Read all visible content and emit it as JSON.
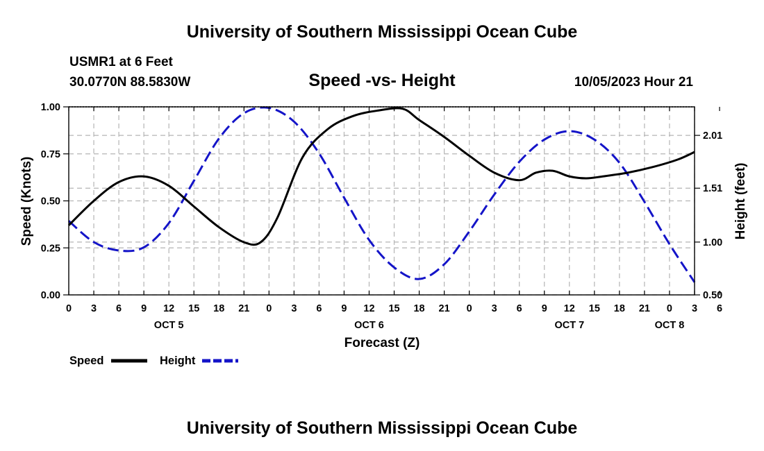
{
  "header": {
    "title": "University of Southern Mississippi Ocean Cube",
    "station": "USMR1 at 6 Feet",
    "location": "30.0770N  88.5830W",
    "timestamp": "10/05/2023 Hour 21",
    "footer_title": "University of Southern Mississippi Ocean Cube"
  },
  "chart_data": {
    "type": "line",
    "title": "Speed -vs- Height",
    "xlabel": "Forecast (Z)",
    "ylabel": "Speed (Knots)",
    "y2label": "Height (feet)",
    "ylim": [
      0,
      1
    ],
    "y2lim": [
      0.5,
      2.28
    ],
    "xlim": [
      0,
      75
    ],
    "x_unit": "hours from OCT 5 00Z",
    "x_tick_labels": [
      "0",
      "3",
      "6",
      "9",
      "12",
      "15",
      "18",
      "21",
      "0",
      "3",
      "6",
      "9",
      "12",
      "15",
      "18",
      "21",
      "0",
      "3",
      "6",
      "9",
      "12",
      "15",
      "18",
      "21",
      "0",
      "3",
      "6"
    ],
    "y_tick_labels": [
      "0.00",
      "0.25",
      "0.50",
      "0.75",
      "1.00"
    ],
    "y_ticks": [
      0,
      0.25,
      0.5,
      0.75,
      1.0
    ],
    "y2_tick_labels": [
      "0.50",
      "1.00",
      "1.51",
      "2.01"
    ],
    "y2_ticks": [
      0.5,
      1.0,
      1.51,
      2.01
    ],
    "date_labels": [
      {
        "label": "OCT 5",
        "x": 12
      },
      {
        "label": "OCT 6",
        "x": 36
      },
      {
        "label": "OCT 7",
        "x": 60
      },
      {
        "label": "OCT 8",
        "x": 72
      }
    ],
    "grid": true,
    "legend_position": "bottom-left",
    "series": [
      {
        "name": "Speed",
        "axis": "left",
        "color": "#000000",
        "style": "solid",
        "x": [
          0,
          3,
          6,
          9,
          12,
          15,
          18,
          21,
          23,
          25,
          28,
          31,
          34,
          37,
          40,
          42,
          45,
          48,
          51,
          54,
          56,
          58,
          60,
          62,
          64,
          67,
          70,
          73,
          75
        ],
        "y": [
          0.37,
          0.5,
          0.6,
          0.63,
          0.58,
          0.47,
          0.36,
          0.28,
          0.28,
          0.41,
          0.73,
          0.88,
          0.95,
          0.98,
          0.99,
          0.93,
          0.84,
          0.74,
          0.65,
          0.61,
          0.65,
          0.66,
          0.63,
          0.62,
          0.63,
          0.65,
          0.68,
          0.72,
          0.76
        ]
      },
      {
        "name": "Height",
        "axis": "right",
        "color": "#1414c8",
        "style": "dashed",
        "x": [
          0,
          3,
          6,
          9,
          12,
          15,
          18,
          21,
          24,
          27,
          30,
          33,
          36,
          39,
          42,
          45,
          48,
          51,
          54,
          57,
          60,
          63,
          66,
          69,
          72,
          75
        ],
        "y": [
          1.2,
          1.0,
          0.92,
          0.95,
          1.18,
          1.58,
          1.98,
          2.22,
          2.27,
          2.14,
          1.84,
          1.42,
          1.02,
          0.76,
          0.65,
          0.79,
          1.1,
          1.45,
          1.76,
          1.97,
          2.05,
          1.97,
          1.75,
          1.38,
          0.98,
          0.62
        ]
      }
    ]
  }
}
